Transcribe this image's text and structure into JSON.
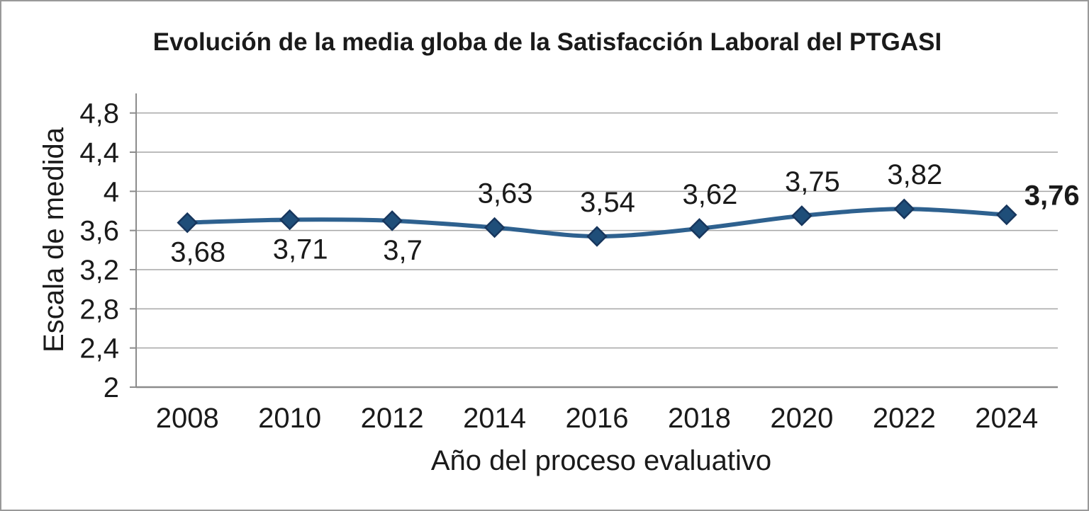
{
  "chart": {
    "title": "Evolución de la media globa de la Satisfacción Laboral del PTGASI",
    "x_axis_title": "Año del proceso evaluativo",
    "y_axis_title": "Escala de medida"
  },
  "chart_data": {
    "type": "line",
    "title": "Evolución de la media globa de la Satisfacción Laboral del PTGASI",
    "xlabel": "Año del proceso evaluativo",
    "ylabel": "Escala de medida",
    "categories": [
      "2008",
      "2010",
      "2012",
      "2014",
      "2016",
      "2018",
      "2020",
      "2022",
      "2024"
    ],
    "values": [
      3.68,
      3.71,
      3.7,
      3.63,
      3.54,
      3.62,
      3.75,
      3.82,
      3.76
    ],
    "point_labels": [
      "3,68",
      "3,71",
      "3,7",
      "3,63",
      "3,54",
      "3,62",
      "3,75",
      "3,82",
      "3,76"
    ],
    "label_positions": [
      "below",
      "below",
      "below",
      "above",
      "above",
      "above",
      "above",
      "above",
      "right"
    ],
    "label_bold": [
      false,
      false,
      false,
      false,
      false,
      false,
      false,
      false,
      true
    ],
    "y_tick_labels": [
      "2",
      "2,4",
      "2,8",
      "3,2",
      "3,6",
      "4",
      "4,4",
      "4,8"
    ],
    "y_tick_values": [
      2,
      2.4,
      2.8,
      3.2,
      3.6,
      4,
      4.4,
      4.8
    ],
    "ylim": [
      2,
      5
    ],
    "grid": "horizontal",
    "legend": "none",
    "smooth": true,
    "marker": "diamond",
    "colors": {
      "line": "#2e618f",
      "marker_fill": "#1f4e79",
      "marker_stroke": "#17365d",
      "grid": "#a6a6a6",
      "axis": "#8c8c8c",
      "text": "#1a1a1a",
      "frame_border": "#999999"
    }
  }
}
